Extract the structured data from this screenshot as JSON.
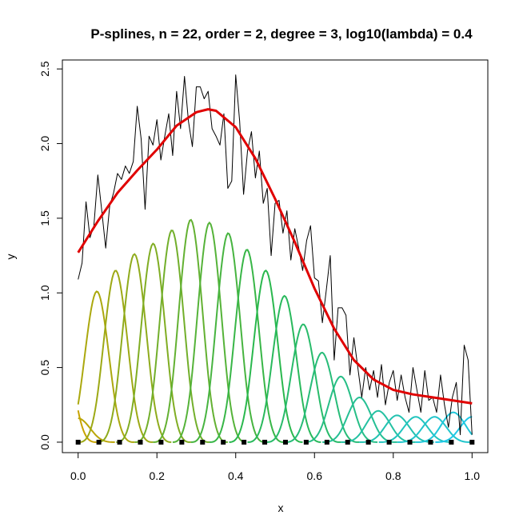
{
  "chart_data": {
    "type": "line",
    "title": "P-splines, n = 22, order = 2, degree = 3, log10(lambda) = 0.4",
    "xlabel": "x",
    "ylabel": "y",
    "xlim": [
      -0.04,
      1.04
    ],
    "ylim": [
      -0.07,
      2.56
    ],
    "x_ticks": [
      0.0,
      0.2,
      0.4,
      0.6,
      0.8,
      1.0
    ],
    "x_tick_labels": [
      "0.0",
      "0.2",
      "0.4",
      "0.6",
      "0.8",
      "1.0"
    ],
    "y_ticks": [
      0.0,
      0.5,
      1.0,
      1.5,
      2.0,
      2.5
    ],
    "y_tick_labels": [
      "0.0",
      "0.5",
      "1.0",
      "1.5",
      "2.0",
      "2.5"
    ],
    "grid": false,
    "legend": "none",
    "series": [
      {
        "kind": "observed",
        "color": "#000000",
        "x": [
          0.0,
          0.01,
          0.02,
          0.03,
          0.04,
          0.05,
          0.06,
          0.07,
          0.08,
          0.09,
          0.1,
          0.11,
          0.12,
          0.13,
          0.14,
          0.15,
          0.16,
          0.17,
          0.18,
          0.19,
          0.2,
          0.21,
          0.22,
          0.23,
          0.24,
          0.25,
          0.26,
          0.27,
          0.28,
          0.29,
          0.3,
          0.31,
          0.32,
          0.33,
          0.34,
          0.35,
          0.36,
          0.37,
          0.38,
          0.39,
          0.4,
          0.41,
          0.42,
          0.43,
          0.44,
          0.45,
          0.46,
          0.47,
          0.48,
          0.49,
          0.5,
          0.51,
          0.52,
          0.53,
          0.54,
          0.55,
          0.56,
          0.57,
          0.58,
          0.59,
          0.6,
          0.61,
          0.62,
          0.63,
          0.64,
          0.65,
          0.66,
          0.67,
          0.68,
          0.69,
          0.7,
          0.71,
          0.72,
          0.73,
          0.74,
          0.75,
          0.76,
          0.77,
          0.78,
          0.79,
          0.8,
          0.81,
          0.82,
          0.83,
          0.84,
          0.85,
          0.86,
          0.87,
          0.88,
          0.89,
          0.9,
          0.91,
          0.92,
          0.93,
          0.94,
          0.95,
          0.96,
          0.97,
          0.98,
          0.99,
          1.0
        ],
        "y": [
          1.09,
          1.2,
          1.61,
          1.37,
          1.45,
          1.79,
          1.55,
          1.3,
          1.58,
          1.67,
          1.8,
          1.76,
          1.85,
          1.8,
          1.88,
          2.25,
          2.03,
          1.56,
          2.05,
          1.99,
          2.16,
          1.89,
          2.05,
          2.2,
          1.92,
          2.35,
          2.1,
          2.45,
          2.15,
          1.98,
          2.38,
          2.38,
          2.3,
          2.35,
          2.1,
          2.05,
          1.99,
          2.2,
          1.7,
          1.75,
          2.46,
          2.15,
          1.66,
          1.95,
          2.08,
          1.77,
          1.95,
          1.6,
          1.7,
          1.25,
          1.6,
          1.62,
          1.4,
          1.55,
          1.22,
          1.43,
          1.3,
          1.15,
          1.35,
          1.45,
          1.1,
          1.08,
          0.8,
          1.02,
          1.25,
          0.55,
          0.9,
          0.9,
          0.85,
          0.45,
          0.7,
          0.5,
          0.3,
          0.5,
          0.35,
          0.48,
          0.3,
          0.52,
          0.25,
          0.4,
          0.48,
          0.28,
          0.45,
          0.3,
          0.2,
          0.5,
          0.35,
          0.2,
          0.48,
          0.28,
          0.3,
          0.2,
          0.45,
          0.25,
          0.1,
          0.3,
          0.4,
          0.05,
          0.65,
          0.55,
          0.05
        ]
      },
      {
        "kind": "fitted",
        "color": "#e00000",
        "x": [
          0.0,
          0.05,
          0.1,
          0.15,
          0.2,
          0.25,
          0.3,
          0.33,
          0.35,
          0.4,
          0.45,
          0.5,
          0.55,
          0.6,
          0.65,
          0.7,
          0.75,
          0.8,
          0.85,
          0.9,
          0.95,
          1.0
        ],
        "y": [
          1.27,
          1.48,
          1.67,
          1.82,
          1.96,
          2.12,
          2.21,
          2.23,
          2.22,
          2.11,
          1.9,
          1.63,
          1.34,
          1.03,
          0.76,
          0.55,
          0.42,
          0.35,
          0.32,
          0.3,
          0.28,
          0.26
        ]
      }
    ],
    "basis": {
      "count": 23,
      "color_start": "#c8a400",
      "color_mid": "#2ab84e",
      "color_end": "#1fc8e8",
      "centers": [
        -0.0476,
        0.0,
        0.0476,
        0.0952,
        0.1429,
        0.1905,
        0.2381,
        0.2857,
        0.3333,
        0.381,
        0.4286,
        0.4762,
        0.5238,
        0.5714,
        0.619,
        0.6667,
        0.7143,
        0.7619,
        0.8095,
        0.8571,
        0.9048,
        0.9524,
        1.0
      ],
      "heights": [
        0.85,
        0.16,
        1.01,
        1.15,
        1.26,
        1.33,
        1.42,
        1.49,
        1.47,
        1.4,
        1.29,
        1.15,
        0.98,
        0.79,
        0.6,
        0.44,
        0.3,
        0.21,
        0.18,
        0.17,
        0.17,
        0.2,
        0.17
      ]
    },
    "knots": {
      "color": "#000000",
      "x": [
        0.0,
        0.0526,
        0.1053,
        0.1579,
        0.2105,
        0.2632,
        0.3158,
        0.3684,
        0.4211,
        0.4737,
        0.5263,
        0.5789,
        0.6316,
        0.6842,
        0.7368,
        0.7895,
        0.8421,
        0.8947,
        0.9474,
        1.0
      ],
      "y": 0.0
    }
  }
}
